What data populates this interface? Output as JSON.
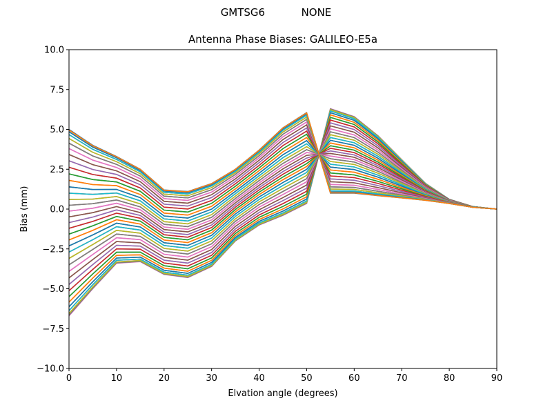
{
  "figure": {
    "suptitle_left": "GMTSG6",
    "suptitle_right": "NONE",
    "title": "Antenna Phase Biases: GALILEO-E5a"
  },
  "chart_data": {
    "type": "line",
    "title": "Antenna Phase Biases: GALILEO-E5a",
    "suptitle": "GMTSG6           NONE",
    "xlabel": "Elvation angle (degrees)",
    "ylabel": "Bias (mm)",
    "xlim": [
      0,
      90
    ],
    "ylim": [
      -10,
      10
    ],
    "grid": false,
    "legend": "none",
    "xticks": [
      "0",
      "10",
      "20",
      "30",
      "40",
      "50",
      "60",
      "70",
      "80",
      "90"
    ],
    "yticks": [
      "10.0",
      "7.5",
      "5.0",
      "2.5",
      "0.0",
      "−2.5",
      "−5.0",
      "−7.5",
      "−10.0"
    ],
    "x": [
      0,
      5,
      10,
      15,
      20,
      25,
      30,
      35,
      40,
      45,
      50,
      55,
      60,
      65,
      70,
      75,
      80,
      85,
      90
    ],
    "series_count": 72,
    "series_description": "One line per azimuth (0-355 deg, step 5); value = mean + amplitude*cos(azimuth)",
    "mean_curve": [
      -0.85,
      -0.5,
      -0.05,
      -0.4,
      -1.45,
      -1.6,
      -1.0,
      0.25,
      1.35,
      2.35,
      3.2,
      3.65,
      3.4,
      2.72,
      1.9,
      1.08,
      0.48,
      0.13,
      0.0
    ],
    "amplitude_curve": [
      5.85,
      4.5,
      3.35,
      2.9,
      2.65,
      2.7,
      2.6,
      2.25,
      2.35,
      2.75,
      2.85,
      -2.65,
      -2.4,
      -1.88,
      -1.2,
      -0.53,
      -0.13,
      -0.02,
      0.0
    ],
    "upper_envelope": [
      5.0,
      4.0,
      3.3,
      2.5,
      1.2,
      1.1,
      1.6,
      2.5,
      3.7,
      5.1,
      6.05,
      6.3,
      5.8,
      4.6,
      3.1,
      1.6,
      0.6,
      0.15,
      0.0
    ],
    "lower_envelope": [
      -6.7,
      -5.0,
      -3.4,
      -3.3,
      -4.1,
      -4.3,
      -3.6,
      -2.0,
      -1.0,
      -0.4,
      0.4,
      1.0,
      1.0,
      0.85,
      0.7,
      0.55,
      0.35,
      0.1,
      0.0
    ],
    "colors": [
      "#1f77b4",
      "#ff7f0e",
      "#2ca02c",
      "#d62728",
      "#9467bd",
      "#8c564b",
      "#e377c2",
      "#7f7f7f",
      "#bcbd22",
      "#17becf"
    ]
  }
}
